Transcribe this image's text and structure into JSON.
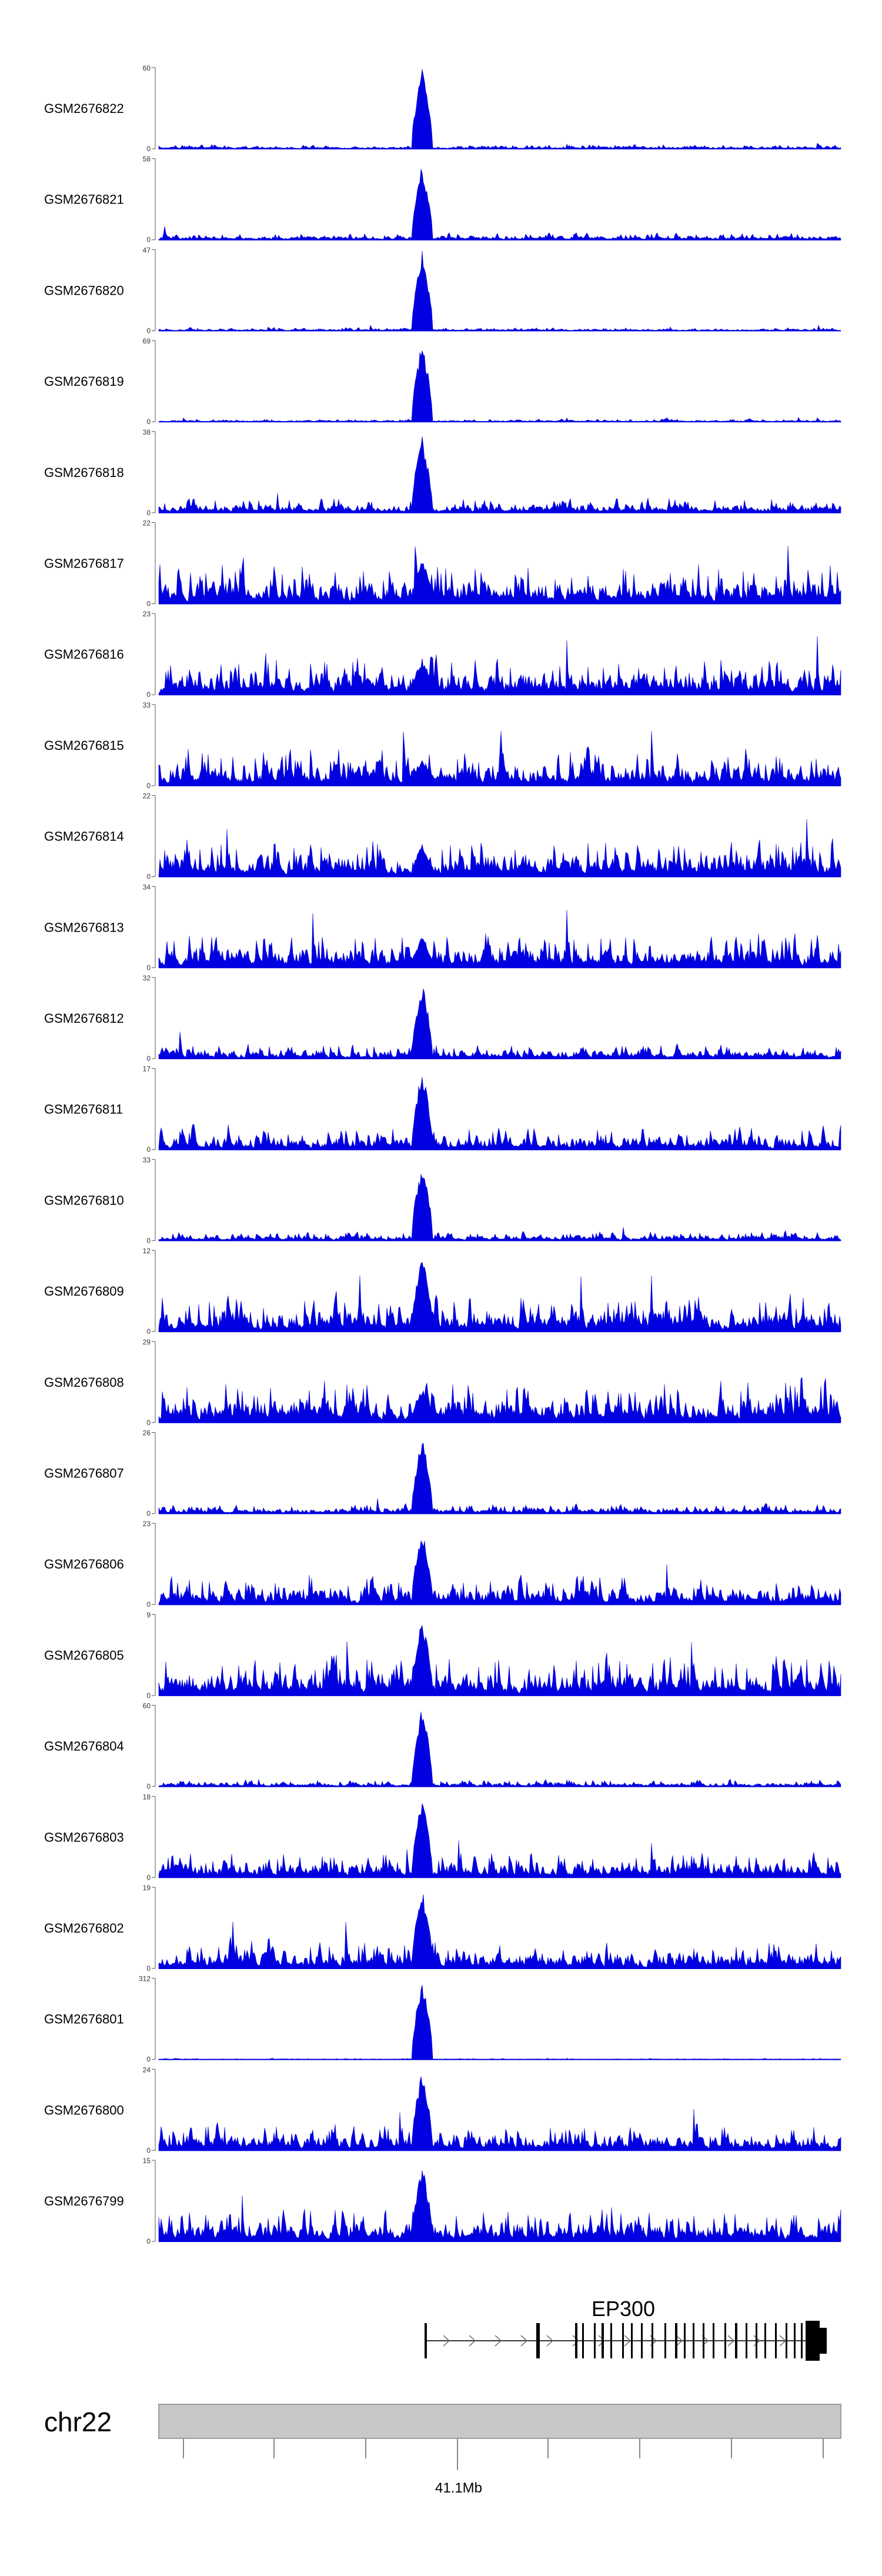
{
  "chart_data": {
    "type": "area",
    "style": "genome-browser coverage tracks",
    "track_color": "#0000e0",
    "region": {
      "chromosome": "chr22",
      "tick_label": "41.1Mb"
    },
    "peak_position": "centre (EP300 promoter / TSS)",
    "tracks": [
      {
        "name": "GSM2676822",
        "ymax": "60",
        "ymin": "0",
        "peak_fraction": 1.0,
        "noise": 0.06
      },
      {
        "name": "GSM2676821",
        "ymax": "58",
        "ymin": "0",
        "peak_fraction": 0.95,
        "noise": 0.1
      },
      {
        "name": "GSM2676820",
        "ymax": "47",
        "ymin": "0",
        "peak_fraction": 1.0,
        "noise": 0.05
      },
      {
        "name": "GSM2676819",
        "ymax": "69",
        "ymin": "0",
        "peak_fraction": 1.0,
        "noise": 0.04
      },
      {
        "name": "GSM2676818",
        "ymax": "38",
        "ymin": "0",
        "peak_fraction": 0.95,
        "noise": 0.22
      },
      {
        "name": "GSM2676817",
        "ymax": "22",
        "ymin": "0",
        "peak_fraction": 0.55,
        "noise": 0.62
      },
      {
        "name": "GSM2676816",
        "ymax": "23",
        "ymin": "0",
        "peak_fraction": 0.45,
        "noise": 0.58
      },
      {
        "name": "GSM2676815",
        "ymax": "33",
        "ymin": "0",
        "peak_fraction": 0.35,
        "noise": 0.55
      },
      {
        "name": "GSM2676814",
        "ymax": "22",
        "ymin": "0",
        "peak_fraction": 0.4,
        "noise": 0.58
      },
      {
        "name": "GSM2676813",
        "ymax": "34",
        "ymin": "0",
        "peak_fraction": 0.4,
        "noise": 0.55
      },
      {
        "name": "GSM2676812",
        "ymax": "32",
        "ymin": "0",
        "peak_fraction": 0.95,
        "noise": 0.22
      },
      {
        "name": "GSM2676811",
        "ymax": "17",
        "ymin": "0",
        "peak_fraction": 1.0,
        "noise": 0.35
      },
      {
        "name": "GSM2676810",
        "ymax": "33",
        "ymin": "0",
        "peak_fraction": 0.98,
        "noise": 0.14
      },
      {
        "name": "GSM2676809",
        "ymax": "12",
        "ymin": "0",
        "peak_fraction": 0.95,
        "noise": 0.55
      },
      {
        "name": "GSM2676808",
        "ymax": "29",
        "ymin": "0",
        "peak_fraction": 0.45,
        "noise": 0.65
      },
      {
        "name": "GSM2676807",
        "ymax": "26",
        "ymin": "0",
        "peak_fraction": 0.95,
        "noise": 0.14
      },
      {
        "name": "GSM2676806",
        "ymax": "23",
        "ymin": "0",
        "peak_fraction": 0.95,
        "noise": 0.42
      },
      {
        "name": "GSM2676805",
        "ymax": "9",
        "ymin": "0",
        "peak_fraction": 0.95,
        "noise": 0.6
      },
      {
        "name": "GSM2676804",
        "ymax": "60",
        "ymin": "0",
        "peak_fraction": 1.0,
        "noise": 0.1
      },
      {
        "name": "GSM2676803",
        "ymax": "18",
        "ymin": "0",
        "peak_fraction": 1.0,
        "noise": 0.4
      },
      {
        "name": "GSM2676802",
        "ymax": "19",
        "ymin": "0",
        "peak_fraction": 1.0,
        "noise": 0.42
      },
      {
        "name": "GSM2676801",
        "ymax": "312",
        "ymin": "0",
        "peak_fraction": 1.0,
        "noise": 0.015
      },
      {
        "name": "GSM2676800",
        "ymax": "24",
        "ymin": "0",
        "peak_fraction": 1.0,
        "noise": 0.4
      },
      {
        "name": "GSM2676799",
        "ymax": "15",
        "ymin": "0",
        "peak_fraction": 0.95,
        "noise": 0.5
      }
    ],
    "gene": {
      "name": "EP300",
      "strand": "+",
      "exons_label_free": true
    }
  }
}
